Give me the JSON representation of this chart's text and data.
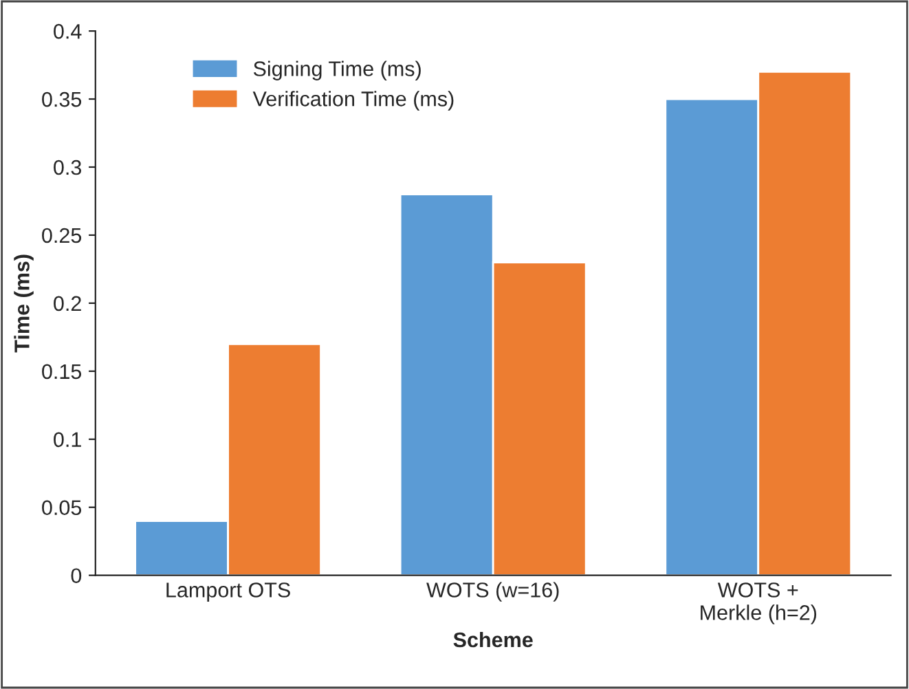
{
  "chart_data": {
    "type": "bar",
    "xlabel": "Scheme",
    "ylabel": "Time (ms)",
    "categories": [
      "Lamport OTS",
      "WOTS (w=16)",
      "WOTS +\nMerkle (h=2)"
    ],
    "series": [
      {
        "name": "Signing Time (ms)",
        "color": "#5b9bd5",
        "values": [
          0.04,
          0.28,
          0.35
        ]
      },
      {
        "name": "Verification Time (ms)",
        "color": "#ed7d31",
        "values": [
          0.17,
          0.23,
          0.37
        ]
      }
    ],
    "ylim": [
      0,
      0.4
    ],
    "yticks": [
      0,
      0.05,
      0.1,
      0.15,
      0.2,
      0.25,
      0.3,
      0.35,
      0.4
    ],
    "grid": false,
    "legend": "top left"
  }
}
